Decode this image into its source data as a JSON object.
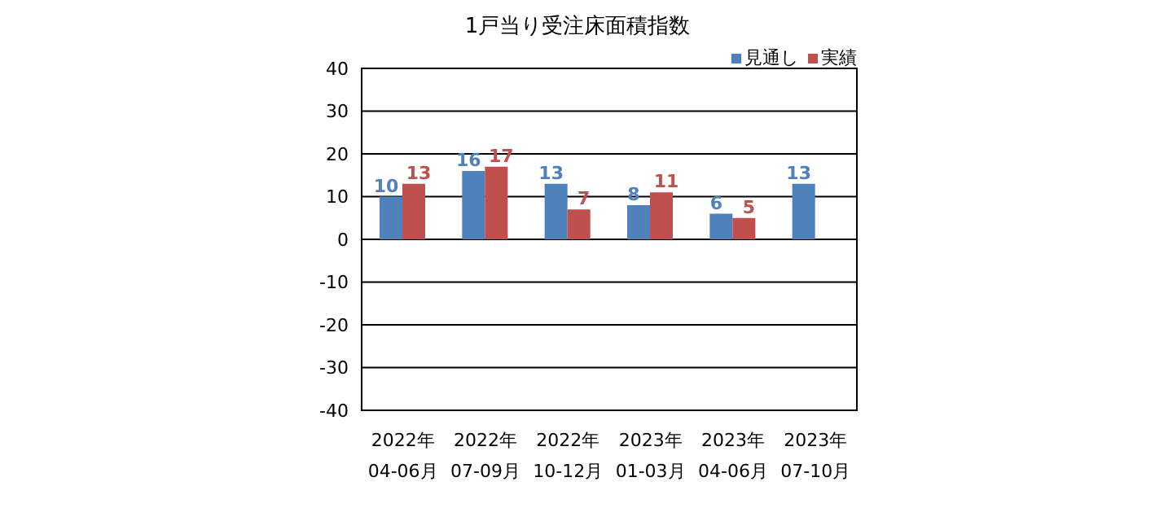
{
  "chart_data": {
    "type": "bar",
    "title": "1戸当り受注床面積指数",
    "categories": [
      "2022年\n04-06月",
      "2022年\n07-09月",
      "2022年\n10-12月",
      "2023年\n01-03月",
      "2023年\n04-06月",
      "2023年\n07-10月"
    ],
    "series": [
      {
        "name": "見通し",
        "color": "#4f81bd",
        "values": [
          10,
          16,
          13,
          8,
          6,
          13
        ]
      },
      {
        "name": "実績",
        "color": "#c0504d",
        "values": [
          13,
          17,
          7,
          11,
          5,
          null
        ]
      }
    ],
    "ylim": [
      -40,
      40
    ],
    "yticks": [
      -40,
      -30,
      -20,
      -10,
      0,
      10,
      20,
      30,
      40
    ],
    "grid": "y",
    "legend": "top right",
    "data_labels": true
  }
}
